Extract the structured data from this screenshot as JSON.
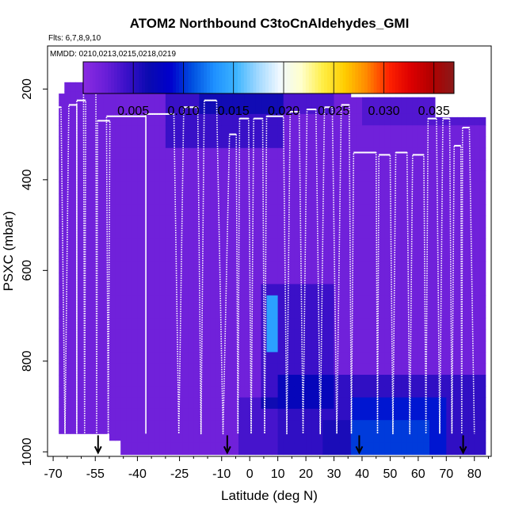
{
  "chart_data": {
    "type": "heatmap",
    "title": "ATOM2 Northbound C3toCnAldehydes_GMI",
    "flights_note": "Flts: 6,7,8,9,10",
    "dates_note": "MMDD: 0210,0213,0215,0218,0219",
    "xlabel": "Latitude (deg N)",
    "ylabel": "PSXC (mbar)",
    "xlim": [
      -72,
      86
    ],
    "ylim": [
      1010,
      105
    ],
    "y_inverted": true,
    "x_ticks": [
      -70,
      -55,
      -40,
      -25,
      -10,
      0,
      10,
      20,
      30,
      40,
      50,
      60,
      70,
      80
    ],
    "y_ticks": [
      200,
      400,
      600,
      800,
      1000
    ],
    "colorbar": {
      "range": [
        0,
        0.037
      ],
      "ticks": [
        "0.005",
        "0.010",
        "0.015",
        "0.020",
        "0.025",
        "0.030",
        "0.035"
      ],
      "tick_values": [
        0.005,
        0.01,
        0.015,
        0.02,
        0.025,
        0.03,
        0.035
      ],
      "colors": [
        "#8a2be2",
        "#6b1fd8",
        "#3a10c8",
        "#0a0ab0",
        "#0000cc",
        "#0050e0",
        "#1e90ff",
        "#3cb4ff",
        "#a0d8ff",
        "#f0f8ff",
        "#ffffcc",
        "#ffee44",
        "#ffcc00",
        "#ff8800",
        "#ff2200",
        "#dd0000",
        "#b00000",
        "#8a1a1a"
      ]
    },
    "profile_arrows_lat": [
      -54,
      -8,
      39,
      76
    ],
    "summary": "Curtain of C3toCn aldehyde mixing ratio along ATom-2 northbound flights; values mostly 0.000-0.005 (purple/dark blue), higher 0.007-0.015 (blue) near the surface north of 30N and a local maximum (~0.014) near 8N around 700-760 mbar."
  }
}
